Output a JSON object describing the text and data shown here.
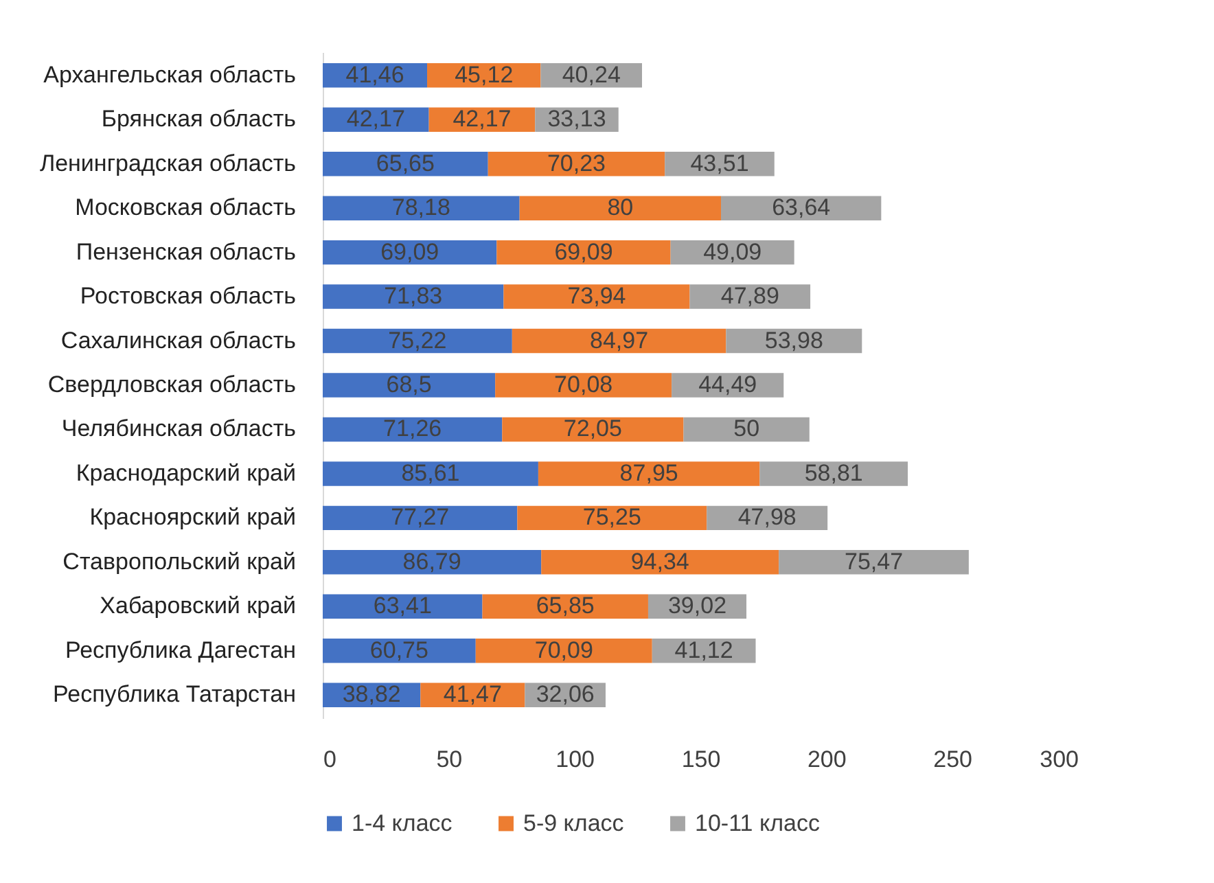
{
  "chart_data": {
    "type": "bar",
    "orientation": "horizontal",
    "stacked": true,
    "legend": "bottom",
    "grid": false,
    "categories": [
      "Архангельская область",
      "Брянская область",
      "Ленинградская область",
      "Московская область",
      "Пензенская область",
      "Ростовская область",
      "Сахалинская область",
      "Свердловская область",
      "Челябинская область",
      "Краснодарский край",
      "Красноярский край",
      "Ставропольский край",
      "Хабаровский край",
      "Республика Дагестан",
      "Республика Татарстан"
    ],
    "xlim": [
      0,
      300
    ],
    "xticks": [
      0,
      50,
      100,
      150,
      200,
      250,
      300
    ],
    "series": [
      {
        "name": "1-4 класс",
        "color": "#4472c4",
        "values": [
          41.46,
          42.17,
          65.65,
          78.18,
          69.09,
          71.83,
          75.22,
          68.5,
          71.26,
          85.61,
          77.27,
          86.79,
          63.41,
          60.75,
          38.82
        ],
        "value_labels": [
          "41,46",
          "42,17",
          "65,65",
          "78,18",
          "69,09",
          "71,83",
          "75,22",
          "68,5",
          "71,26",
          "85,61",
          "77,27",
          "86,79",
          "63,41",
          "60,75",
          "38,82"
        ]
      },
      {
        "name": "5-9 класс",
        "color": "#ed7d31",
        "values": [
          45.12,
          42.17,
          70.23,
          80,
          69.09,
          73.94,
          84.97,
          70.08,
          72.05,
          87.95,
          75.25,
          94.34,
          65.85,
          70.09,
          41.47
        ],
        "value_labels": [
          "45,12",
          "42,17",
          "70,23",
          "80",
          "69,09",
          "73,94",
          "84,97",
          "70,08",
          "72,05",
          "87,95",
          "75,25",
          "94,34",
          "65,85",
          "70,09",
          "41,47"
        ]
      },
      {
        "name": "10-11 класс",
        "color": "#a5a5a5",
        "values": [
          40.24,
          33.13,
          43.51,
          63.64,
          49.09,
          47.89,
          53.98,
          44.49,
          50,
          58.81,
          47.98,
          75.47,
          39.02,
          41.12,
          32.06
        ],
        "value_labels": [
          "40,24",
          "33,13",
          "43,51",
          "63,64",
          "49,09",
          "47,89",
          "53,98",
          "44,49",
          "50",
          "58,81",
          "47,98",
          "75,47",
          "39,02",
          "41,12",
          "32,06"
        ]
      }
    ]
  }
}
